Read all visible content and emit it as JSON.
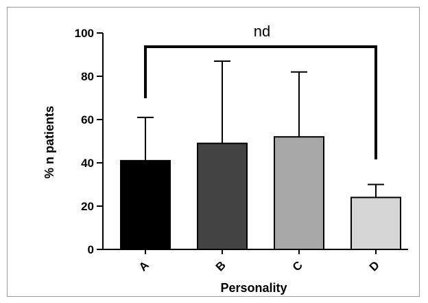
{
  "chart_data": {
    "type": "bar",
    "title": "",
    "xlabel": "Personality",
    "ylabel": "% n patients",
    "categories": [
      "A",
      "B",
      "C",
      "D"
    ],
    "values": [
      41,
      49,
      52,
      24
    ],
    "error_upper": [
      61,
      87,
      82,
      30
    ],
    "ylim": [
      0,
      100
    ],
    "yticks": [
      0,
      20,
      40,
      60,
      80,
      100
    ],
    "grid": false,
    "bar_colors": [
      "#000000",
      "#434343",
      "#a8a8a8",
      "#d6d6d6"
    ],
    "annotation": {
      "text": "nd",
      "from_category": "A",
      "to_category": "D"
    }
  }
}
